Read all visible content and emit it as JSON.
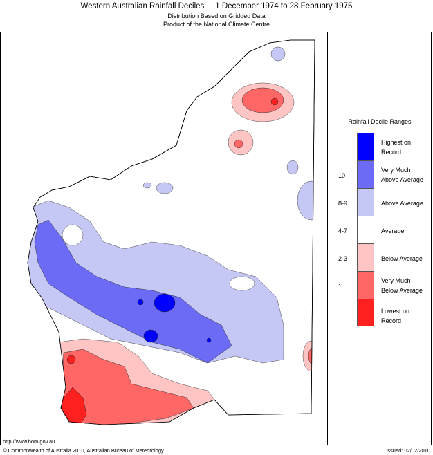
{
  "header": {
    "title": "Western Australian Rainfall Deciles     1 December 1974 to 28 February 1975",
    "subtitle_1": "Distribution Based on Gridded Data",
    "subtitle_2": "Product of the National Climate Centre"
  },
  "legend": {
    "title": "Rainfall Decile Ranges",
    "items": [
      {
        "label": "Highest on\nRecord",
        "decile": "",
        "color": "#0000ff"
      },
      {
        "label": "Very Much\nAbove Average",
        "decile": "10",
        "color": "#6b6bf5"
      },
      {
        "label": "Above Average",
        "decile": "8-9",
        "color": "#c5c8f5"
      },
      {
        "label": "Average",
        "decile": "4-7",
        "color": "#ffffff"
      },
      {
        "label": "Below Average",
        "decile": "2-3",
        "color": "#ffc4c4"
      },
      {
        "label": "Very Much\nBelow Average",
        "decile": "1",
        "color": "#ff6666"
      },
      {
        "label": "Lowest on\nRecord",
        "decile": "",
        "color": "#ff2020"
      }
    ]
  },
  "footer": {
    "url": "http://www.bom.gov.au",
    "copyright": "© Commonwealth of Australia 2010, Australian Bureau of Meteorology",
    "issued": "Issued: 02/02/2010"
  }
}
